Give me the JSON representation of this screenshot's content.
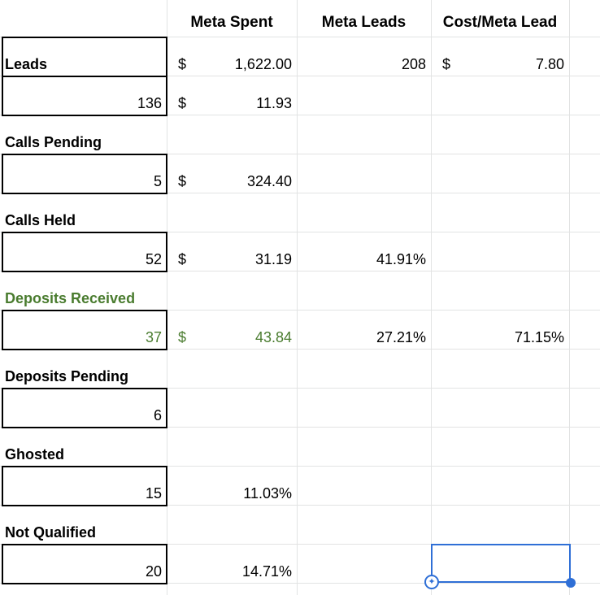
{
  "headers": {
    "col_b": "Meta Spent",
    "col_c": "Meta Leads",
    "col_d": "Cost/Meta Lead"
  },
  "currency_symbol": "$",
  "rows": {
    "leads": {
      "label": "Leads",
      "spent": "1,622.00",
      "meta_leads": "208",
      "cost": "7.80"
    },
    "leads_count": {
      "count": "136",
      "value": "11.93"
    },
    "calls_pending": {
      "label": "Calls Pending"
    },
    "calls_pending_count": {
      "count": "5",
      "value": "324.40"
    },
    "calls_held": {
      "label": "Calls Held"
    },
    "calls_held_count": {
      "count": "52",
      "value": "31.19",
      "pct": "41.91%"
    },
    "deposits_received": {
      "label": "Deposits Received"
    },
    "deposits_received_count": {
      "count": "37",
      "value": "43.84",
      "pct1": "27.21%",
      "pct2": "71.15%"
    },
    "deposits_pending": {
      "label": "Deposits Pending"
    },
    "deposits_pending_count": {
      "count": "6"
    },
    "ghosted": {
      "label": "Ghosted"
    },
    "ghosted_count": {
      "count": "15",
      "pct": "11.03%"
    },
    "not_qualified": {
      "label": "Not Qualified"
    },
    "not_qualified_count": {
      "count": "20",
      "pct": "14.71%"
    }
  },
  "colors": {
    "gridline": "#e2e3e3",
    "green_text": "#4a7c2f",
    "selection": "#2f6fd6"
  },
  "icons": {
    "explore": "sparkle-icon"
  }
}
